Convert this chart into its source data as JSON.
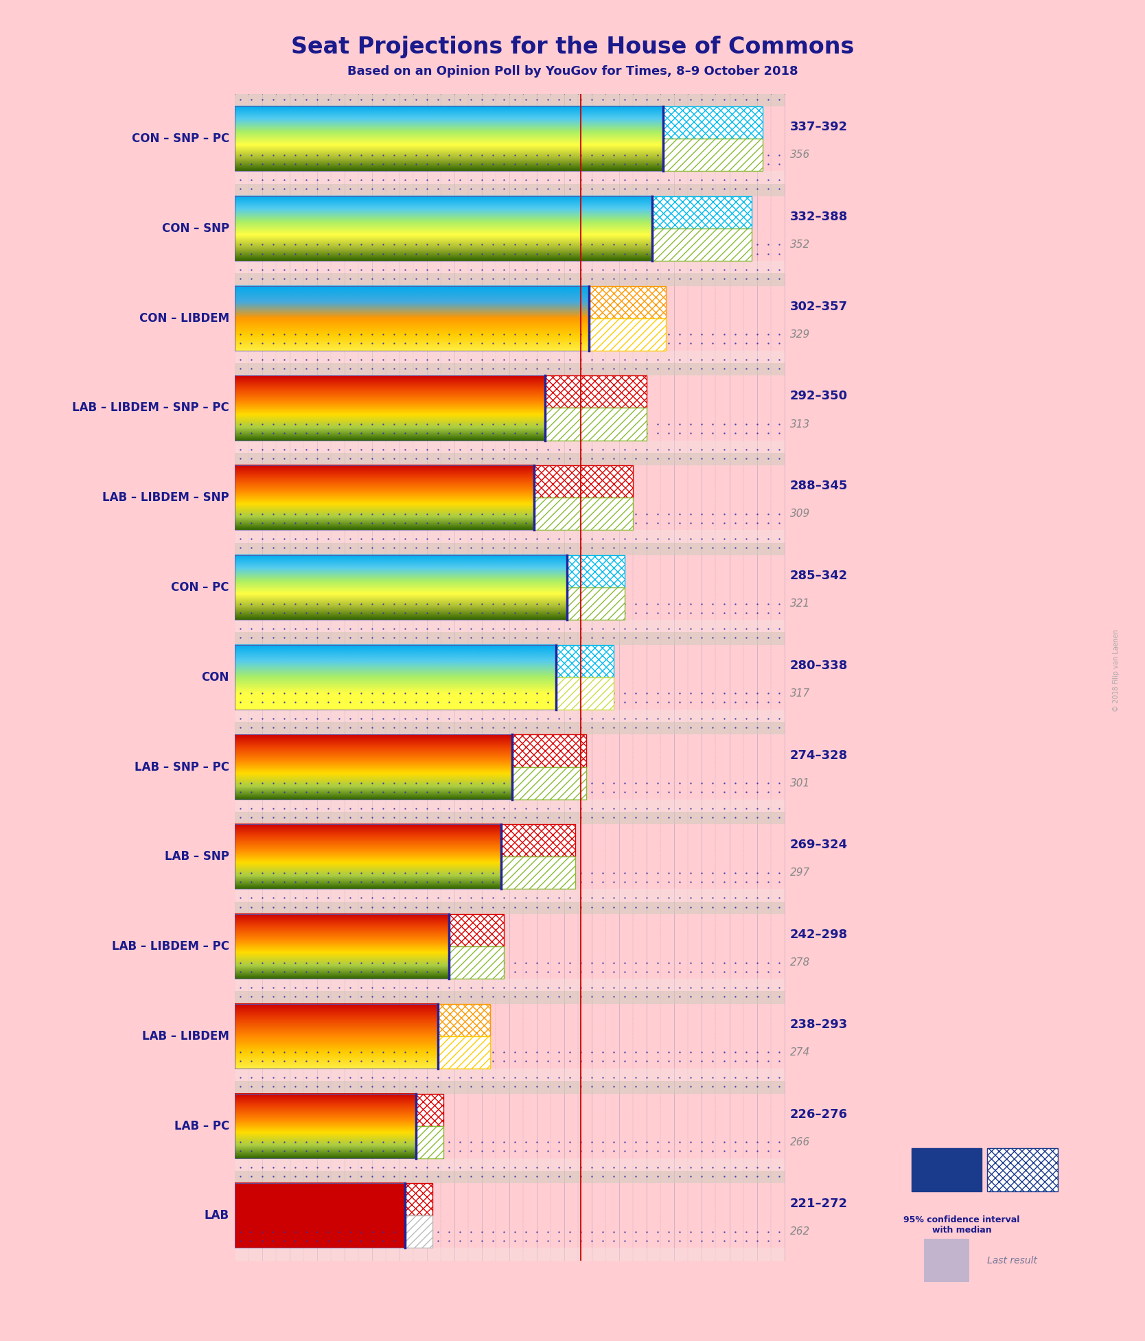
{
  "title": "Seat Projections for the House of Commons",
  "subtitle": "Based on an Opinion Poll by YouGov for Times, 8–9 October 2018",
  "background_color": "#FFCDD2",
  "title_color": "#1a1a8c",
  "subtitle_color": "#1a1a8c",
  "watermark": "© 2018 Filip van Laenen",
  "coalitions": [
    {
      "label": "CON – SNP – PC",
      "low": 337,
      "high": 392,
      "median": 356,
      "last": 356,
      "type": "CON_SNP"
    },
    {
      "label": "CON – SNP",
      "low": 332,
      "high": 388,
      "median": 352,
      "last": 352,
      "type": "CON_SNP"
    },
    {
      "label": "CON – LIBDEM",
      "low": 302,
      "high": 357,
      "median": 329,
      "last": 329,
      "type": "CON_LIBDEM"
    },
    {
      "label": "LAB – LIBDEM – SNP – PC",
      "low": 292,
      "high": 350,
      "median": 313,
      "last": 313,
      "type": "LAB_MIX"
    },
    {
      "label": "LAB – LIBDEM – SNP",
      "low": 288,
      "high": 345,
      "median": 309,
      "last": 309,
      "type": "LAB_MIX"
    },
    {
      "label": "CON – PC",
      "low": 285,
      "high": 342,
      "median": 321,
      "last": 321,
      "type": "CON_SNP"
    },
    {
      "label": "CON",
      "low": 280,
      "high": 338,
      "median": 317,
      "last": 317,
      "type": "CON_ONLY"
    },
    {
      "label": "LAB – SNP – PC",
      "low": 274,
      "high": 328,
      "median": 301,
      "last": 301,
      "type": "LAB_MIX"
    },
    {
      "label": "LAB – SNP",
      "low": 269,
      "high": 324,
      "median": 297,
      "last": 297,
      "type": "LAB_SNP"
    },
    {
      "label": "LAB – LIBDEM – PC",
      "low": 242,
      "high": 298,
      "median": 278,
      "last": 278,
      "type": "LAB_MIX"
    },
    {
      "label": "LAB – LIBDEM",
      "low": 238,
      "high": 293,
      "median": 274,
      "last": 274,
      "type": "LAB_LIBDEM"
    },
    {
      "label": "LAB – PC",
      "low": 226,
      "high": 276,
      "median": 266,
      "last": 266,
      "type": "LAB_SNP"
    },
    {
      "label": "LAB",
      "low": 221,
      "high": 272,
      "median": 262,
      "last": 262,
      "type": "LAB_ONLY"
    }
  ],
  "xmin": 200,
  "xmax": 400,
  "majority_line": 326,
  "legend_label": "95% confidence interval\nwith median",
  "legend_last": "Last result",
  "label_color": "#1a1a8c",
  "median_color": "#888888"
}
